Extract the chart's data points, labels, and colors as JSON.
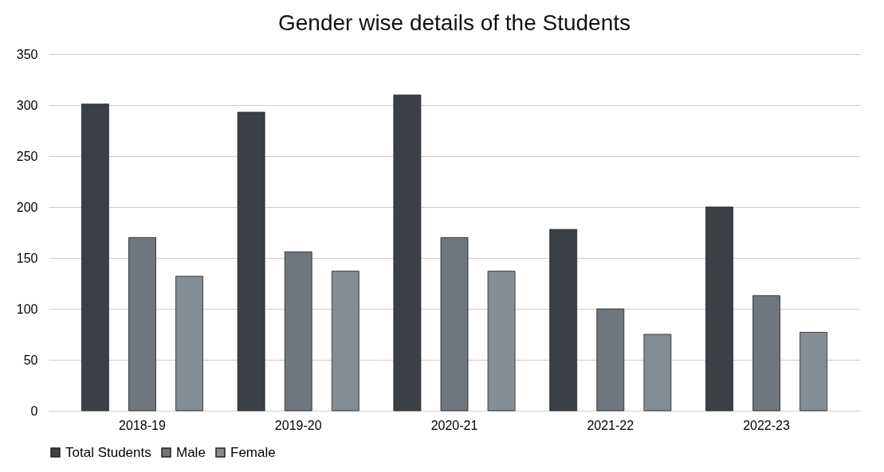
{
  "chart_data": {
    "type": "bar",
    "title": "Gender wise details of the Students",
    "categories": [
      "2018-19",
      "2019-20",
      "2020-21",
      "2021-22",
      "2022-23"
    ],
    "series": [
      {
        "name": "Total Students",
        "color": "#3b4046",
        "values": [
          301,
          293,
          310,
          178,
          200
        ]
      },
      {
        "name": "Male",
        "color": "#6f767d",
        "values": [
          170,
          156,
          170,
          100,
          113
        ]
      },
      {
        "name": "Female",
        "color": "#858d94",
        "values": [
          132,
          137,
          137,
          75,
          77
        ]
      }
    ],
    "ylim": [
      0,
      350
    ],
    "yticks": [
      0,
      50,
      100,
      150,
      200,
      250,
      300,
      350
    ],
    "grid": "y",
    "legend": "bottom"
  }
}
